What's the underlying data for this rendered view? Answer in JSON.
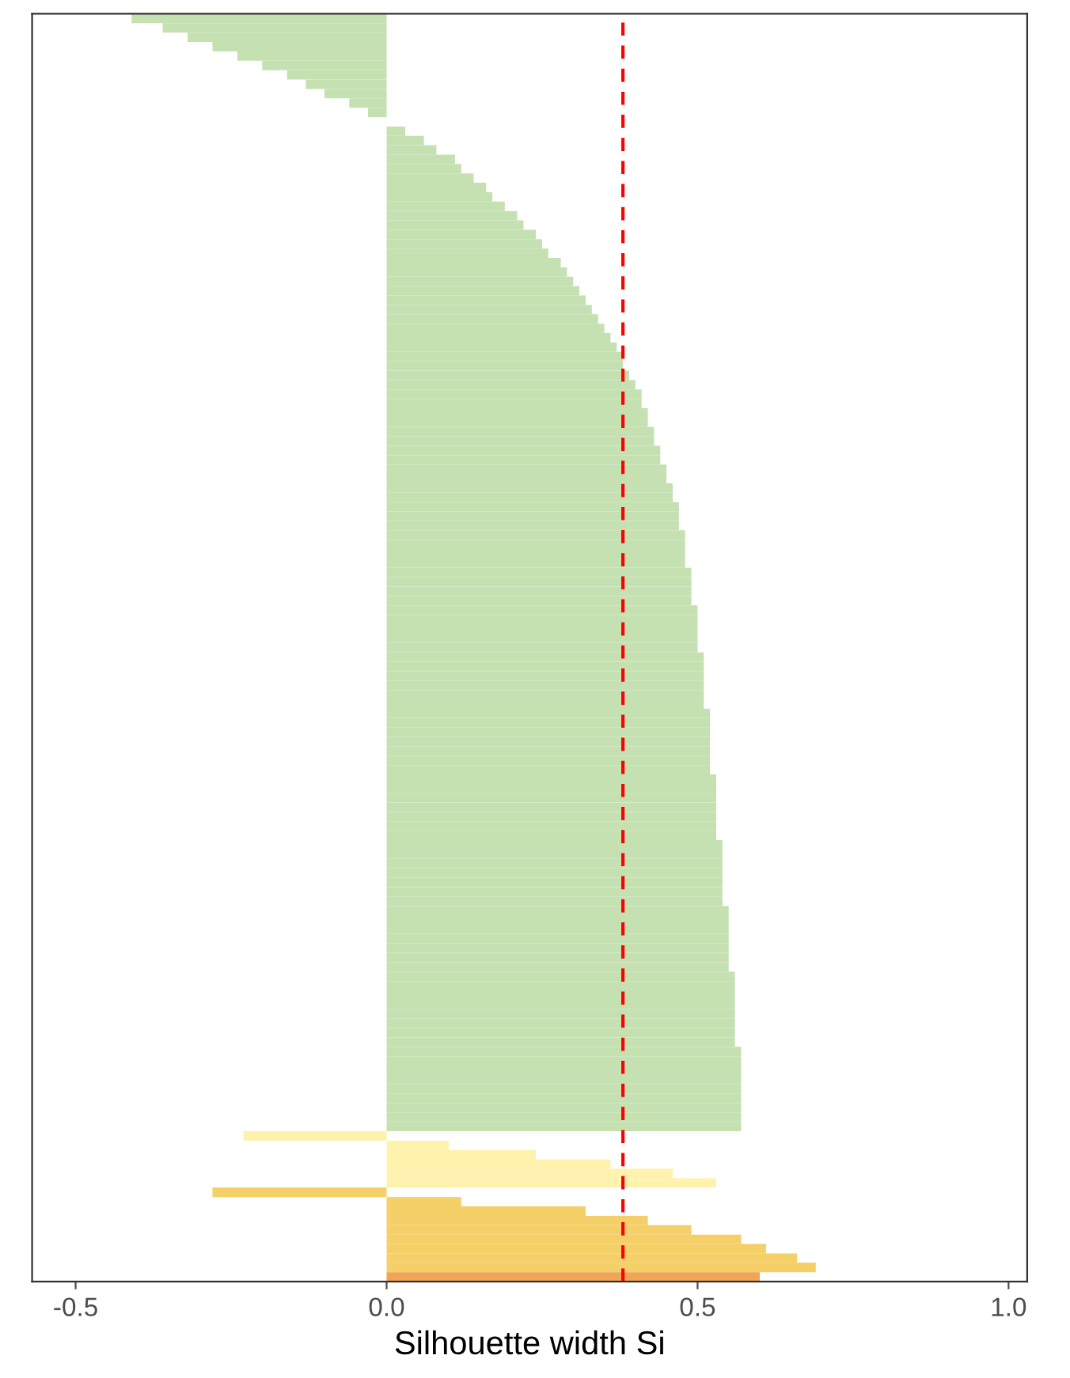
{
  "chart_data": {
    "type": "bar",
    "orientation": "horizontal",
    "xlabel": "Silhouette width Si",
    "tick_labels": "x",
    "grid": false,
    "xlim": [
      -0.57,
      1.03
    ],
    "xticks": [
      {
        "value": -0.5,
        "label": "-0.5"
      },
      {
        "value": 0.0,
        "label": "0.0"
      },
      {
        "value": 0.5,
        "label": "0.5"
      },
      {
        "value": 1.0,
        "label": "1.0"
      }
    ],
    "ref_lines": [
      {
        "axis": "x",
        "value": 0.38,
        "color": "#ff0000",
        "line_style": "dashed"
      }
    ],
    "categories": [
      null,
      null,
      null,
      null,
      null,
      null,
      null,
      null,
      null,
      null,
      null,
      null,
      null,
      null,
      null,
      null,
      null,
      null,
      null,
      null,
      null,
      null,
      null,
      null,
      null,
      null,
      null,
      null,
      null,
      null,
      null,
      null,
      null,
      null,
      null,
      null,
      null,
      null,
      null,
      null,
      null,
      null,
      null,
      null,
      null,
      null,
      null,
      null,
      null,
      null,
      null,
      null,
      null,
      null,
      null,
      null,
      null,
      null,
      null,
      null,
      null,
      null,
      null,
      null,
      null,
      null,
      null,
      null,
      null,
      null,
      null,
      null,
      null,
      null,
      null,
      null,
      null,
      null,
      null,
      null,
      null,
      null,
      null,
      null,
      null,
      null,
      null,
      null,
      null,
      null,
      null,
      null,
      null,
      null,
      null,
      null,
      null,
      null,
      null,
      null,
      null,
      null,
      null,
      null,
      null,
      null,
      null,
      null,
      null,
      null,
      null,
      null,
      null,
      null,
      null,
      null,
      null,
      null,
      null,
      null,
      null,
      null,
      null,
      null,
      null,
      null,
      null,
      null,
      null,
      null,
      null,
      null,
      null,
      null,
      null
    ],
    "values": [
      -0.41,
      -0.36,
      -0.32,
      -0.28,
      -0.24,
      -0.2,
      -0.16,
      -0.13,
      -0.1,
      -0.06,
      -0.03,
      0.0,
      0.03,
      0.06,
      0.08,
      0.11,
      0.12,
      0.14,
      0.16,
      0.17,
      0.19,
      0.21,
      0.22,
      0.24,
      0.25,
      0.26,
      0.28,
      0.29,
      0.3,
      0.31,
      0.32,
      0.33,
      0.34,
      0.35,
      0.36,
      0.37,
      0.38,
      0.38,
      0.39,
      0.4,
      0.41,
      0.41,
      0.42,
      0.42,
      0.43,
      0.43,
      0.44,
      0.44,
      0.45,
      0.45,
      0.46,
      0.46,
      0.47,
      0.47,
      0.47,
      0.48,
      0.48,
      0.48,
      0.48,
      0.49,
      0.49,
      0.49,
      0.49,
      0.5,
      0.5,
      0.5,
      0.5,
      0.5,
      0.51,
      0.51,
      0.51,
      0.51,
      0.51,
      0.51,
      0.52,
      0.52,
      0.52,
      0.52,
      0.52,
      0.52,
      0.52,
      0.53,
      0.53,
      0.53,
      0.53,
      0.53,
      0.53,
      0.53,
      0.54,
      0.54,
      0.54,
      0.54,
      0.54,
      0.54,
      0.54,
      0.55,
      0.55,
      0.55,
      0.55,
      0.55,
      0.55,
      0.55,
      0.56,
      0.56,
      0.56,
      0.56,
      0.56,
      0.56,
      0.56,
      0.56,
      0.57,
      0.57,
      0.57,
      0.57,
      0.57,
      0.57,
      0.57,
      0.57,
      0.57,
      -0.23,
      0.1,
      0.24,
      0.36,
      0.46,
      0.53,
      -0.28,
      0.12,
      0.32,
      0.42,
      0.49,
      0.57,
      0.61,
      0.66,
      0.69,
      0.6
    ],
    "colors": [
      "#c5e1b2",
      "#c5e1b2",
      "#c5e1b2",
      "#c5e1b2",
      "#c5e1b2",
      "#c5e1b2",
      "#c5e1b2",
      "#c5e1b2",
      "#c5e1b2",
      "#c5e1b2",
      "#c5e1b2",
      "#c5e1b2",
      "#c5e1b2",
      "#c5e1b2",
      "#c5e1b2",
      "#c5e1b2",
      "#c5e1b2",
      "#c5e1b2",
      "#c5e1b2",
      "#c5e1b2",
      "#c5e1b2",
      "#c5e1b2",
      "#c5e1b2",
      "#c5e1b2",
      "#c5e1b2",
      "#c5e1b2",
      "#c5e1b2",
      "#c5e1b2",
      "#c5e1b2",
      "#c5e1b2",
      "#c5e1b2",
      "#c5e1b2",
      "#c5e1b2",
      "#c5e1b2",
      "#c5e1b2",
      "#c5e1b2",
      "#c5e1b2",
      "#c5e1b2",
      "#c5e1b2",
      "#c5e1b2",
      "#c5e1b2",
      "#c5e1b2",
      "#c5e1b2",
      "#c5e1b2",
      "#c5e1b2",
      "#c5e1b2",
      "#c5e1b2",
      "#c5e1b2",
      "#c5e1b2",
      "#c5e1b2",
      "#c5e1b2",
      "#c5e1b2",
      "#c5e1b2",
      "#c5e1b2",
      "#c5e1b2",
      "#c5e1b2",
      "#c5e1b2",
      "#c5e1b2",
      "#c5e1b2",
      "#c5e1b2",
      "#c5e1b2",
      "#c5e1b2",
      "#c5e1b2",
      "#c5e1b2",
      "#c5e1b2",
      "#c5e1b2",
      "#c5e1b2",
      "#c5e1b2",
      "#c5e1b2",
      "#c5e1b2",
      "#c5e1b2",
      "#c5e1b2",
      "#c5e1b2",
      "#c5e1b2",
      "#c5e1b2",
      "#c5e1b2",
      "#c5e1b2",
      "#c5e1b2",
      "#c5e1b2",
      "#c5e1b2",
      "#c5e1b2",
      "#c5e1b2",
      "#c5e1b2",
      "#c5e1b2",
      "#c5e1b2",
      "#c5e1b2",
      "#c5e1b2",
      "#c5e1b2",
      "#c5e1b2",
      "#c5e1b2",
      "#c5e1b2",
      "#c5e1b2",
      "#c5e1b2",
      "#c5e1b2",
      "#c5e1b2",
      "#c5e1b2",
      "#c5e1b2",
      "#c5e1b2",
      "#c5e1b2",
      "#c5e1b2",
      "#c5e1b2",
      "#c5e1b2",
      "#c5e1b2",
      "#c5e1b2",
      "#c5e1b2",
      "#c5e1b2",
      "#c5e1b2",
      "#c5e1b2",
      "#c5e1b2",
      "#c5e1b2",
      "#c5e1b2",
      "#c5e1b2",
      "#c5e1b2",
      "#c5e1b2",
      "#c5e1b2",
      "#c5e1b2",
      "#c5e1b2",
      "#c5e1b2",
      "#c5e1b2",
      "#fff2ad",
      "#fff2ad",
      "#fff2ad",
      "#fff2ad",
      "#fff2ad",
      "#fff2ad",
      "#f5cf67",
      "#f5cf67",
      "#f5cf67",
      "#f5cf67",
      "#f5cf67",
      "#f5cf67",
      "#f5cf67",
      "#f5cf67",
      "#f5cf67",
      "#f0a556"
    ]
  }
}
